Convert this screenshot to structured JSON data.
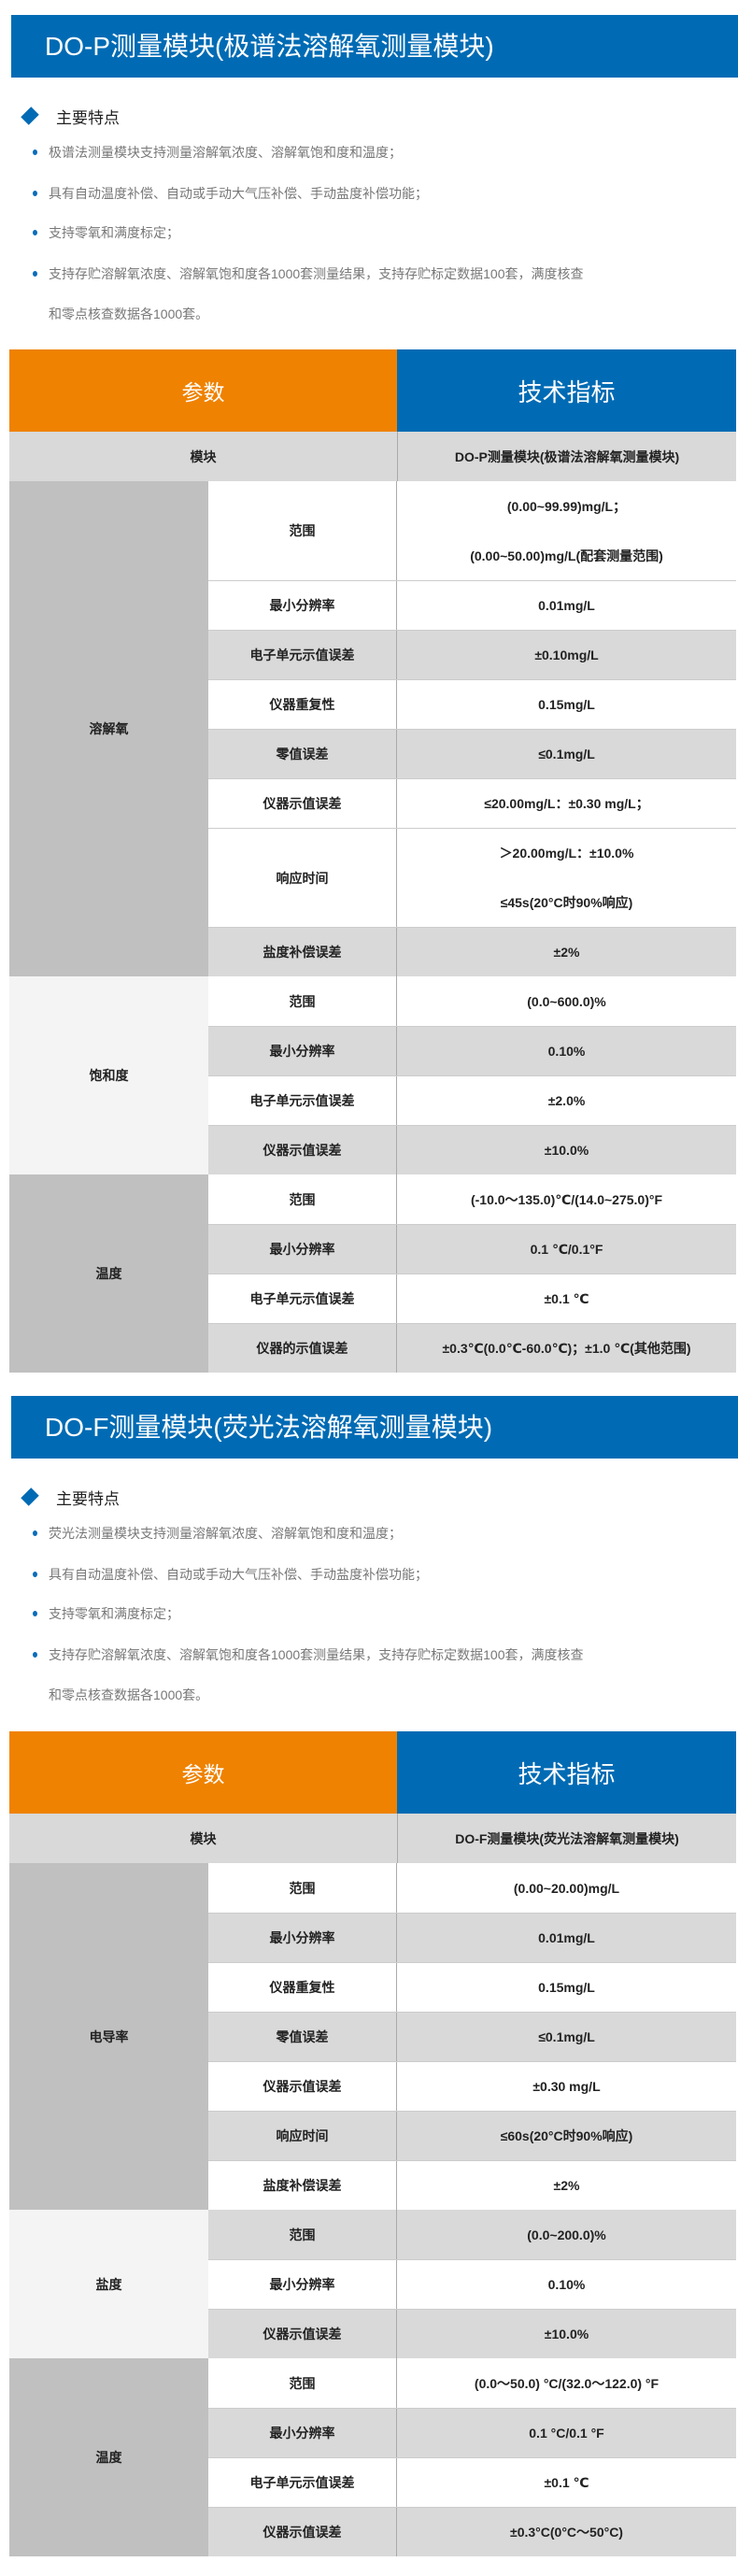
{
  "sections": [
    {
      "title": "DO-P测量模块(极谱法溶解氧测量模块)",
      "features_heading": "主要特点",
      "features": [
        "极谱法测量模块支持测量溶解氧浓度、溶解氧饱和度和温度；",
        "具有自动温度补偿、自动或手动大气压补偿、手动盐度补偿功能；",
        "支持零氧和满度标定；",
        "支持存贮溶解氧浓度、溶解氧饱和度各1000套测量结果，支持存贮标定数据100套，满度核查",
        "和零点核查数据各1000套。"
      ],
      "table": {
        "header_param": "参数",
        "header_value": "技术指标",
        "module_label": "模块",
        "module_value": "DO-P测量模块(极谱法溶解氧测量模块)",
        "groups": [
          {
            "name": "溶解氧",
            "shade": "dark",
            "rows": [
              {
                "param": "范围",
                "values": [
                  "(0.00~99.99)mg/L；",
                  "(0.00~50.00)mg/L(配套测量范围)"
                ],
                "band": "white"
              },
              {
                "param": "最小分辨率",
                "values": [
                  "0.01mg/L"
                ],
                "band": "white"
              },
              {
                "param": "电子单元示值误差",
                "values": [
                  "±0.10mg/L"
                ],
                "band": "gray"
              },
              {
                "param": "仪器重复性",
                "values": [
                  "0.15mg/L"
                ],
                "band": "white"
              },
              {
                "param": "零值误差",
                "values": [
                  "≤0.1mg/L"
                ],
                "band": "gray"
              },
              {
                "param": "仪器示值误差",
                "values": [
                  "≤20.00mg/L：±0.30 mg/L；"
                ],
                "band": "white"
              },
              {
                "param": "响应时间",
                "values": [
                  "＞20.00mg/L：±10.0%",
                  "≤45s(20°C时90%响应)"
                ],
                "band": "white"
              },
              {
                "param": "盐度补偿误差",
                "values": [
                  "±2%"
                ],
                "band": "gray"
              }
            ]
          },
          {
            "name": "饱和度",
            "shade": "light",
            "rows": [
              {
                "param": "范围",
                "values": [
                  "(0.0~600.0)%"
                ],
                "band": "white"
              },
              {
                "param": "最小分辨率",
                "values": [
                  "0.10%"
                ],
                "band": "gray"
              },
              {
                "param": "电子单元示值误差",
                "values": [
                  "±2.0%"
                ],
                "band": "white"
              },
              {
                "param": "仪器示值误差",
                "values": [
                  "±10.0%"
                ],
                "band": "gray"
              }
            ]
          },
          {
            "name": "温度",
            "shade": "dark",
            "rows": [
              {
                "param": "范围",
                "values": [
                  "(-10.0～135.0)℃/(14.0~275.0)°F"
                ],
                "band": "white"
              },
              {
                "param": "最小分辨率",
                "values": [
                  "0.1 ℃/0.1°F"
                ],
                "band": "gray"
              },
              {
                "param": "电子单元示值误差",
                "values": [
                  "±0.1 ℃"
                ],
                "band": "white"
              },
              {
                "param": "仪器的示值误差",
                "values": [
                  "±0.3℃(0.0℃-60.0℃)；±1.0 ℃(其他范围)"
                ],
                "band": "gray"
              }
            ]
          }
        ]
      }
    },
    {
      "title": "DO-F测量模块(荧光法溶解氧测量模块)",
      "features_heading": "主要特点",
      "features": [
        "荧光法测量模块支持测量溶解氧浓度、溶解氧饱和度和温度；",
        "具有自动温度补偿、自动或手动大气压补偿、手动盐度补偿功能；",
        "支持零氧和满度标定；",
        "支持存贮溶解氧浓度、溶解氧饱和度各1000套测量结果，支持存贮标定数据100套，满度核查",
        "和零点核查数据各1000套。"
      ],
      "table": {
        "header_param": "参数",
        "header_value": "技术指标",
        "module_label": "模块",
        "module_value": "DO-F测量模块(荧光法溶解氧测量模块)",
        "groups": [
          {
            "name": "电导率",
            "shade": "dark",
            "rows": [
              {
                "param": "范围",
                "values": [
                  "(0.00~20.00)mg/L"
                ],
                "band": "white"
              },
              {
                "param": "最小分辨率",
                "values": [
                  "0.01mg/L"
                ],
                "band": "gray"
              },
              {
                "param": "仪器重复性",
                "values": [
                  "0.15mg/L"
                ],
                "band": "white"
              },
              {
                "param": "零值误差",
                "values": [
                  "≤0.1mg/L"
                ],
                "band": "gray"
              },
              {
                "param": "仪器示值误差",
                "values": [
                  "±0.30 mg/L"
                ],
                "band": "white"
              },
              {
                "param": "响应时间",
                "values": [
                  "≤60s(20°C时90%响应)"
                ],
                "band": "gray"
              },
              {
                "param": "盐度补偿误差",
                "values": [
                  "±2%"
                ],
                "band": "white"
              }
            ]
          },
          {
            "name": "盐度",
            "shade": "light",
            "rows": [
              {
                "param": "范围",
                "values": [
                  "(0.0~200.0)%"
                ],
                "band": "gray"
              },
              {
                "param": "最小分辨率",
                "values": [
                  "0.10%"
                ],
                "band": "white"
              },
              {
                "param": "仪器示值误差",
                "values": [
                  "±10.0%"
                ],
                "band": "gray"
              }
            ]
          },
          {
            "name": "温度",
            "shade": "dark",
            "rows": [
              {
                "param": "范围",
                "values": [
                  "(0.0～50.0) °C/(32.0～122.0) °F"
                ],
                "band": "white"
              },
              {
                "param": "最小分辨率",
                "values": [
                  "0.1 °C/0.1 °F"
                ],
                "band": "gray"
              },
              {
                "param": "电子单元示值误差",
                "values": [
                  "±0.1 ℃"
                ],
                "band": "white"
              },
              {
                "param": "仪器示值误差",
                "values": [
                  "±0.3°C(0°C～50°C)"
                ],
                "band": "gray"
              }
            ]
          }
        ]
      }
    }
  ]
}
